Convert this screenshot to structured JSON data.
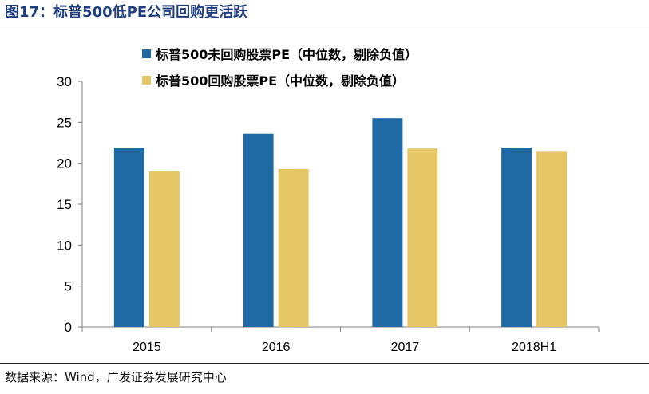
{
  "figure": {
    "title": "图17：标普500低PE公司回购更活跃",
    "source": "数据来源：Wind，广发证券发展研究中心"
  },
  "chart_data": {
    "type": "bar",
    "title": "标普500低PE公司回购更活跃",
    "categories": [
      "2015",
      "2016",
      "2017",
      "2018H1"
    ],
    "series": [
      {
        "name": "标普500未回购股票PE（中位数，剔除负值）",
        "color": "#1f6aa5",
        "values": [
          21.9,
          23.6,
          25.5,
          21.9
        ]
      },
      {
        "name": "标普500回购股票PE（中位数，剔除负值）",
        "color": "#e6c768",
        "values": [
          19.0,
          19.3,
          21.8,
          21.5
        ]
      }
    ],
    "ylim": [
      0,
      30
    ],
    "yticks": [
      0,
      5,
      10,
      15,
      20,
      25,
      30
    ],
    "xlabel": "",
    "ylabel": "",
    "legend": "top-center"
  }
}
